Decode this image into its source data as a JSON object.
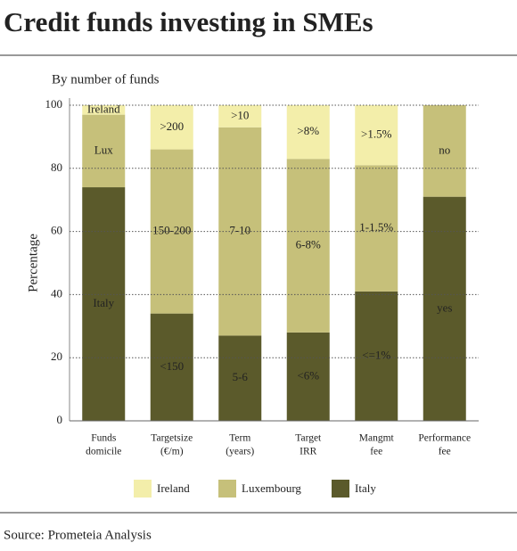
{
  "chart_data": {
    "type": "stacked_bar",
    "title": "Credit funds investing in SMEs",
    "subtitle": "By number of funds",
    "y_label": "Percentage",
    "source": "Source: Prometeia Analysis",
    "categories": [
      [
        "Funds",
        "domicile"
      ],
      [
        "Targetsize",
        "(€/m)"
      ],
      [
        "Term",
        "(years)"
      ],
      [
        "Target",
        "IRR"
      ],
      [
        "Mangmt",
        "fee"
      ],
      [
        "Performance",
        "fee"
      ]
    ],
    "series": [
      {
        "name": "Italy",
        "color": "#5b5a2b",
        "values": [
          74,
          34,
          27,
          28,
          41,
          71
        ],
        "value_labels": [
          "Italy",
          "<150",
          "5-6",
          "<6%",
          "<=1%",
          "yes"
        ]
      },
      {
        "name": "Luxembourg",
        "color": "#c6c07a",
        "values": [
          23,
          52,
          66,
          55,
          40,
          29
        ],
        "value_labels": [
          "Lux",
          "150-200",
          "7-10",
          "6-8%",
          "1-1.5%",
          "no"
        ]
      },
      {
        "name": "Ireland",
        "color": "#f3eeaa",
        "values": [
          3,
          14,
          7,
          17,
          19,
          0
        ],
        "value_labels": [
          "Ireland",
          ">200",
          ">10",
          ">8%",
          ">1.5%",
          null
        ]
      }
    ],
    "legend_order": [
      2,
      1,
      0
    ],
    "ylim": [
      0,
      100
    ],
    "yticks": [
      0,
      20,
      40,
      60,
      80,
      100
    ],
    "grid": true
  }
}
